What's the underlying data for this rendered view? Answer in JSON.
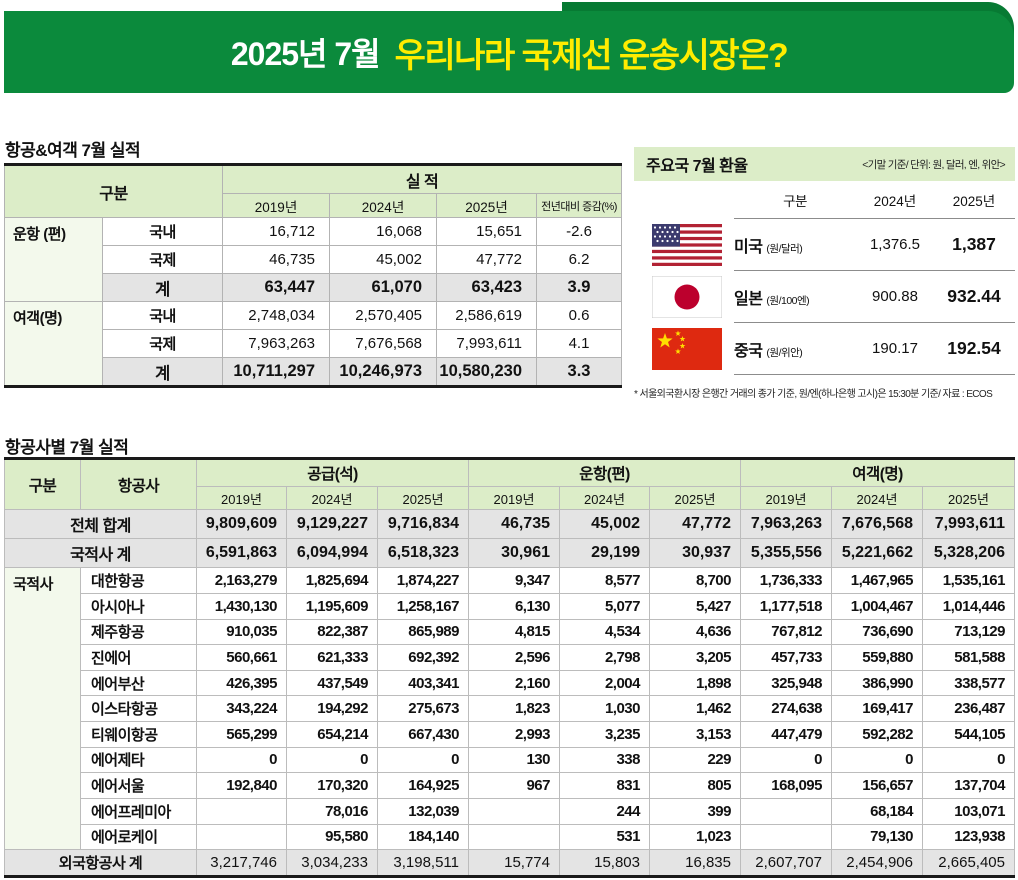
{
  "banner": {
    "prefix": "2025년 7월",
    "title": "우리나라 국제선 운송시장은?",
    "bg_color": "#0b8a3c",
    "tab_color": "#077a33",
    "accent_color": "#ffec00"
  },
  "section1": {
    "title": "항공&여객 7월 실적",
    "table": {
      "gubun_header": "구분",
      "perf_header": "실 적",
      "year_headers": [
        "2019년",
        "2024년",
        "2025년",
        "전년대비 증감(%)"
      ],
      "groups": [
        {
          "label": "운항 (편)",
          "rows": [
            {
              "label": "국내",
              "total": false,
              "values": [
                "16,712",
                "16,068",
                "15,651",
                "-2.6"
              ]
            },
            {
              "label": "국제",
              "total": false,
              "values": [
                "46,735",
                "45,002",
                "47,772",
                "6.2"
              ]
            },
            {
              "label": "계",
              "total": true,
              "values": [
                "63,447",
                "61,070",
                "63,423",
                "3.9"
              ]
            }
          ]
        },
        {
          "label": "여객(명)",
          "rows": [
            {
              "label": "국내",
              "total": false,
              "values": [
                "2,748,034",
                "2,570,405",
                "2,586,619",
                "0.6"
              ]
            },
            {
              "label": "국제",
              "total": false,
              "values": [
                "7,963,263",
                "7,676,568",
                "7,993,611",
                "4.1"
              ]
            },
            {
              "label": "계",
              "total": true,
              "values": [
                "10,711,297",
                "10,246,973",
                "10,580,230",
                "3.3"
              ]
            }
          ]
        }
      ]
    }
  },
  "fx_panel": {
    "title": "주요국 7월 환율",
    "note": "<기말 기준/ 단위: 원, 달러, 엔, 위안>",
    "headers": [
      "구분",
      "2024년",
      "2025년"
    ],
    "rows": [
      {
        "flag": "us-flag",
        "country": "미국",
        "unit": "(원/달러)",
        "y2024": "1,376.5",
        "y2025": "1,387"
      },
      {
        "flag": "japan-flag",
        "country": "일본",
        "unit": "(원/100엔)",
        "y2024": "900.88",
        "y2025": "932.44"
      },
      {
        "flag": "china-flag",
        "country": "중국",
        "unit": "(원/위안)",
        "y2024": "190.17",
        "y2025": "192.54"
      }
    ],
    "footnote": "* 서울외국환시장 은행간 거래의 종가 기준, 원/엔(하나은행 고시)은 15:30분 기준/ 자료 : ECOS"
  },
  "section2": {
    "title": "항공사별 7월 실적",
    "table": {
      "gubun_header": "구분",
      "airline_header": "항공사",
      "group_headers": [
        "공급(석)",
        "운항(편)",
        "여객(명)"
      ],
      "year_headers": [
        "2019년",
        "2024년",
        "2025년"
      ],
      "category_label": "국적사",
      "rows": [
        {
          "type": "total",
          "label": "전체 합계",
          "values": [
            "9,809,609",
            "9,129,227",
            "9,716,834",
            "46,735",
            "45,002",
            "47,772",
            "7,963,263",
            "7,676,568",
            "7,993,611"
          ]
        },
        {
          "type": "subtotal",
          "label": "국적사 계",
          "values": [
            "6,591,863",
            "6,094,994",
            "6,518,323",
            "30,961",
            "29,199",
            "30,937",
            "5,355,556",
            "5,221,662",
            "5,328,206"
          ]
        },
        {
          "type": "airline",
          "label": "대한항공",
          "values": [
            "2,163,279",
            "1,825,694",
            "1,874,227",
            "9,347",
            "8,577",
            "8,700",
            "1,736,333",
            "1,467,965",
            "1,535,161"
          ]
        },
        {
          "type": "airline",
          "label": "아시아나",
          "values": [
            "1,430,130",
            "1,195,609",
            "1,258,167",
            "6,130",
            "5,077",
            "5,427",
            "1,177,518",
            "1,004,467",
            "1,014,446"
          ]
        },
        {
          "type": "airline",
          "label": "제주항공",
          "values": [
            "910,035",
            "822,387",
            "865,989",
            "4,815",
            "4,534",
            "4,636",
            "767,812",
            "736,690",
            "713,129"
          ]
        },
        {
          "type": "airline",
          "label": "진에어",
          "values": [
            "560,661",
            "621,333",
            "692,392",
            "2,596",
            "2,798",
            "3,205",
            "457,733",
            "559,880",
            "581,588"
          ]
        },
        {
          "type": "airline",
          "label": "에어부산",
          "values": [
            "426,395",
            "437,549",
            "403,341",
            "2,160",
            "2,004",
            "1,898",
            "325,948",
            "386,990",
            "338,577"
          ]
        },
        {
          "type": "airline",
          "label": "이스타항공",
          "values": [
            "343,224",
            "194,292",
            "275,673",
            "1,823",
            "1,030",
            "1,462",
            "274,638",
            "169,417",
            "236,487"
          ]
        },
        {
          "type": "airline",
          "label": "티웨이항공",
          "values": [
            "565,299",
            "654,214",
            "667,430",
            "2,993",
            "3,235",
            "3,153",
            "447,479",
            "592,282",
            "544,105"
          ]
        },
        {
          "type": "airline",
          "label": "에어제타",
          "values": [
            "0",
            "0",
            "0",
            "130",
            "338",
            "229",
            "0",
            "0",
            "0"
          ]
        },
        {
          "type": "airline",
          "label": "에어서울",
          "values": [
            "192,840",
            "170,320",
            "164,925",
            "967",
            "831",
            "805",
            "168,095",
            "156,657",
            "137,704"
          ]
        },
        {
          "type": "airline",
          "label": "에어프레미아",
          "values": [
            "",
            "78,016",
            "132,039",
            "",
            "244",
            "399",
            "",
            "68,184",
            "103,071"
          ]
        },
        {
          "type": "airline",
          "label": "에어로케이",
          "values": [
            "",
            "95,580",
            "184,140",
            "",
            "531",
            "1,023",
            "",
            "79,130",
            "123,938"
          ]
        },
        {
          "type": "foreign",
          "label": "외국항공사 계",
          "values": [
            "3,217,746",
            "3,034,233",
            "3,198,511",
            "15,774",
            "15,803",
            "16,835",
            "2,607,707",
            "2,454,906",
            "2,665,405"
          ]
        }
      ]
    }
  }
}
